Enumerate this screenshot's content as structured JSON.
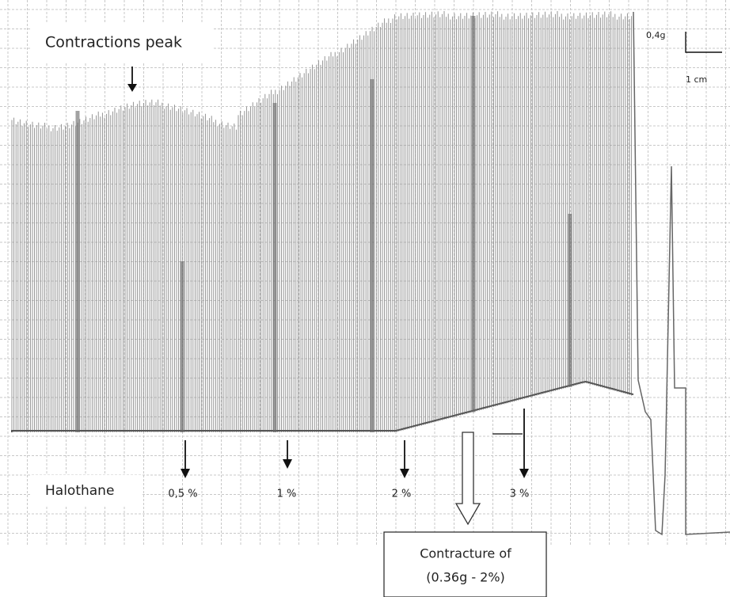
{
  "annotations": {
    "peak_label": "Contractions peak",
    "scale_force": "0,4g",
    "scale_length": "1 cm",
    "drug": "Halothane",
    "doses": [
      "0,5 %",
      "1 %",
      "2 %",
      "3 %"
    ],
    "contracture": [
      "Contracture of",
      "(0.36g - 2%)"
    ]
  }
}
